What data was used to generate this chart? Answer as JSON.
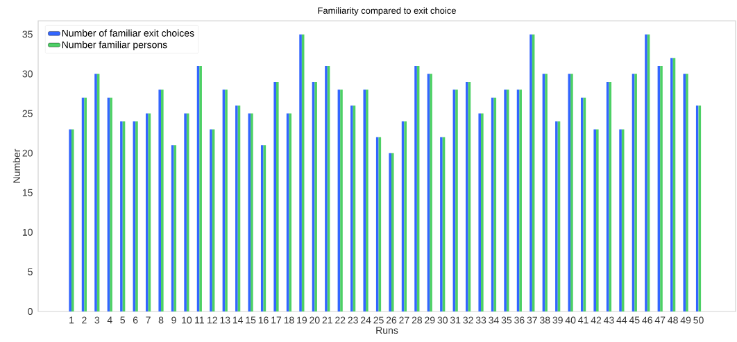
{
  "chart_data": {
    "type": "bar",
    "title": "Familiarity compared to exit choice",
    "xlabel": "Runs",
    "ylabel": "Number",
    "categories": [
      "1",
      "2",
      "3",
      "4",
      "5",
      "6",
      "7",
      "8",
      "9",
      "10",
      "11",
      "12",
      "13",
      "14",
      "15",
      "16",
      "17",
      "18",
      "19",
      "20",
      "21",
      "22",
      "23",
      "24",
      "25",
      "26",
      "27",
      "28",
      "29",
      "30",
      "31",
      "32",
      "33",
      "34",
      "35",
      "36",
      "37",
      "38",
      "39",
      "40",
      "41",
      "42",
      "43",
      "44",
      "45",
      "46",
      "47",
      "48",
      "49",
      "50"
    ],
    "series": [
      {
        "name": "Number of familiar exit choices",
        "color": "#3366ff",
        "values": [
          23,
          27,
          30,
          27,
          24,
          24,
          25,
          28,
          21,
          25,
          31,
          23,
          28,
          26,
          25,
          21,
          29,
          25,
          35,
          29,
          31,
          28,
          26,
          28,
          22,
          20,
          24,
          31,
          30,
          22,
          28,
          29,
          25,
          27,
          28,
          28,
          35,
          30,
          24,
          30,
          27,
          23,
          29,
          23,
          30,
          35,
          31,
          32,
          30,
          26
        ]
      },
      {
        "name": "Number familiar persons",
        "color": "#4dd065",
        "values": [
          23,
          27,
          30,
          27,
          24,
          24,
          25,
          28,
          21,
          25,
          31,
          23,
          28,
          26,
          25,
          21,
          29,
          25,
          35,
          29,
          31,
          28,
          26,
          28,
          22,
          20,
          24,
          31,
          30,
          22,
          28,
          29,
          25,
          27,
          28,
          28,
          35,
          30,
          24,
          30,
          27,
          23,
          29,
          23,
          30,
          35,
          31,
          32,
          30,
          26
        ]
      }
    ],
    "ylim": [
      0,
      36.7
    ],
    "yticks": [
      0,
      5,
      10,
      15,
      20,
      25,
      30,
      35
    ],
    "grid": false,
    "legend": "top left"
  }
}
